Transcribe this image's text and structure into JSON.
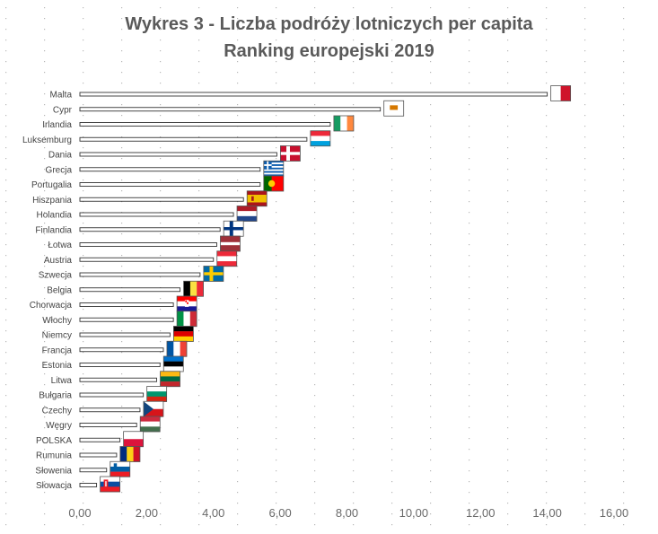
{
  "chart_data": {
    "type": "bar",
    "orientation": "horizontal",
    "title": "Wykres 3 - Liczba podróży lotniczych per capita",
    "subtitle": "Ranking europejski 2019",
    "categories": [
      "Malta",
      "Cypr",
      "Irlandia",
      "Luksemburg",
      "Dania",
      "Grecja",
      "Portugalia",
      "Hiszpania",
      "Holandia",
      "Finlandia",
      "Łotwa",
      "Austria",
      "Szwecja",
      "Belgia",
      "Chorwacja",
      "Włochy",
      "Niemcy",
      "Francja",
      "Estonia",
      "Litwa",
      "Bułgaria",
      "Czechy",
      "Węgry",
      "POLSKA",
      "Rumunia",
      "Słowenia",
      "Słowacja"
    ],
    "values": [
      14.0,
      9.0,
      7.5,
      6.8,
      5.9,
      5.4,
      5.4,
      4.9,
      4.6,
      4.2,
      4.1,
      4.0,
      3.6,
      3.0,
      2.8,
      2.8,
      2.7,
      2.5,
      2.4,
      2.3,
      1.9,
      1.8,
      1.7,
      1.2,
      1.1,
      0.8,
      0.5
    ],
    "flags": [
      "malta-flag",
      "cyprus-flag",
      "ireland-flag",
      "luxembourg-flag",
      "denmark-flag",
      "greece-flag",
      "portugal-flag",
      "spain-flag",
      "netherlands-flag",
      "finland-flag",
      "latvia-flag",
      "austria-flag",
      "sweden-flag",
      "belgium-flag",
      "croatia-flag",
      "italy-flag",
      "germany-flag",
      "france-flag",
      "estonia-flag",
      "lithuania-flag",
      "bulgaria-flag",
      "czechia-flag",
      "hungary-flag",
      "poland-flag",
      "romania-flag",
      "slovenia-flag",
      "slovakia-flag"
    ],
    "xlim": [
      0,
      16
    ],
    "xticks": [
      "0,00",
      "2,00",
      "4,00",
      "6,00",
      "8,00",
      "10,00",
      "12,00",
      "14,00",
      "16,00"
    ],
    "grid": false,
    "legend": "none",
    "colors": {
      "title": "#5a5a5a",
      "bar_fill": "#ffffff",
      "bar_stroke": "#333333",
      "text": "#444444"
    }
  }
}
